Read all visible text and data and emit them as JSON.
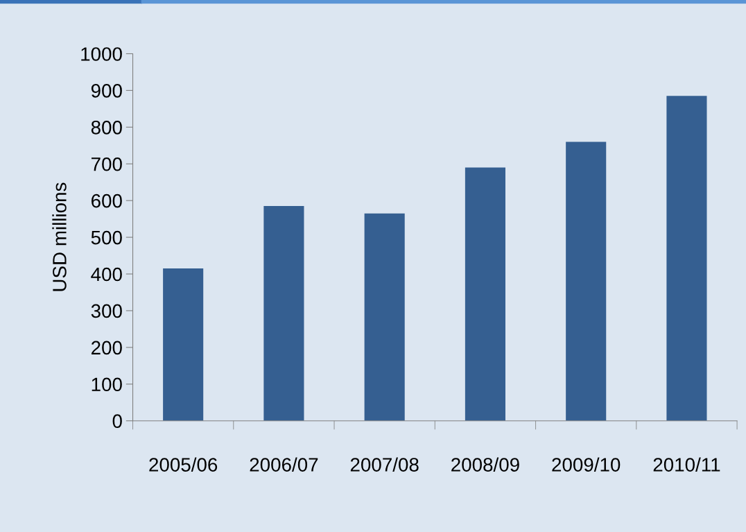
{
  "chart_data": {
    "type": "bar",
    "ylabel": "USD millions",
    "categories": [
      "2005/06",
      "2006/07",
      "2007/08",
      "2008/09",
      "2009/10",
      "2010/11"
    ],
    "values": [
      415,
      585,
      565,
      690,
      760,
      885
    ],
    "color": "#355f91",
    "ylim": [
      0,
      1000
    ],
    "yticks": [
      0,
      100,
      200,
      300,
      400,
      500,
      600,
      700,
      800,
      900,
      1000
    ],
    "grid": false,
    "legend": false
  }
}
